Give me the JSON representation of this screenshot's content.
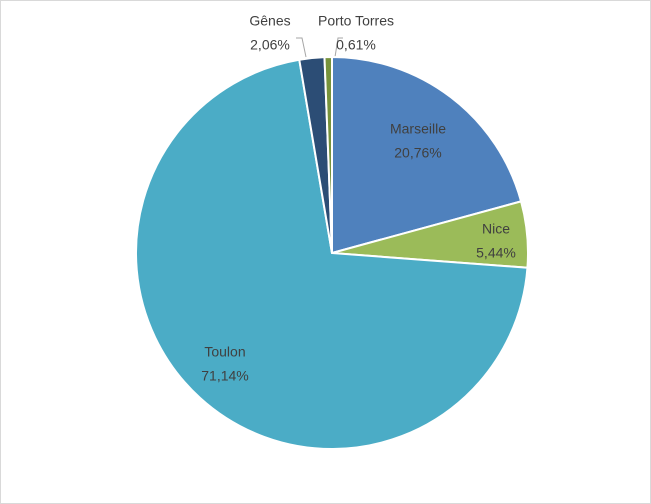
{
  "chart_data": {
    "type": "pie",
    "categories": [
      "Marseille",
      "Nice",
      "Toulon",
      "Gênes",
      "Porto Torres"
    ],
    "values": [
      20.76,
      5.44,
      71.14,
      2.06,
      0.61
    ],
    "value_labels": [
      "20,76%",
      "5,44%",
      "71,14%",
      "2,06%",
      "0,61%"
    ],
    "colors": [
      "#4f81bd",
      "#9bbb59",
      "#4bacc6",
      "#2c4d75",
      "#77933c"
    ]
  }
}
